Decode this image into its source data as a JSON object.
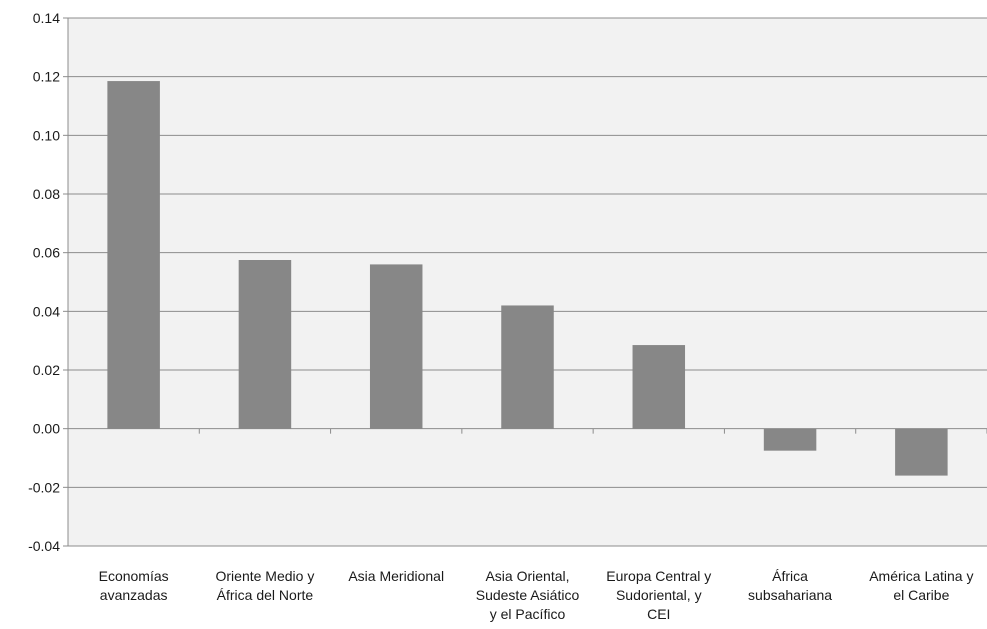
{
  "chart_data": {
    "type": "bar",
    "categories": [
      [
        "Economías",
        "avanzadas"
      ],
      [
        "Oriente Medio y",
        "África del Norte"
      ],
      [
        "Asia Meridional"
      ],
      [
        "Asia Oriental,",
        "Sudeste Asiático",
        "y el Pacífico"
      ],
      [
        "Europa Central y",
        "Sudoriental, y",
        "CEI"
      ],
      [
        "África",
        "subsahariana"
      ],
      [
        "América Latina y",
        "el Caribe"
      ]
    ],
    "values": [
      0.1185,
      0.0575,
      0.056,
      0.042,
      0.0285,
      -0.0075,
      -0.016
    ],
    "ylim": [
      -0.04,
      0.14
    ],
    "yticks": [
      "0.14",
      "0.12",
      "0.10",
      "0.08",
      "0.06",
      "0.04",
      "0.02",
      "0.00",
      "-0.02",
      "-0.04"
    ],
    "title": "",
    "xlabel": "",
    "ylabel": "",
    "grid": true,
    "legend": "none",
    "bar_color": "#878787",
    "background_color": "#f2f2f2"
  }
}
